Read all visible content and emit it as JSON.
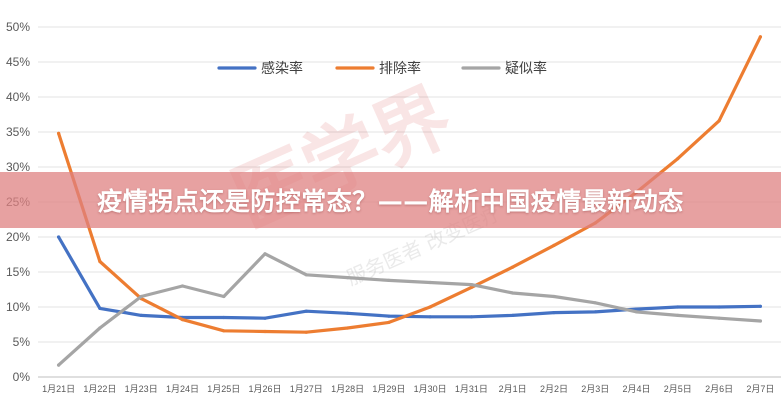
{
  "banner": {
    "title": "疫情拐点还是防控常态？——解析中国疫情最新动态"
  },
  "watermark": {
    "logo_text": "医学界",
    "sub_text": "服务医者 改变医疗"
  },
  "chart_data": {
    "type": "line",
    "categories": [
      "1月21日",
      "1月22日",
      "1月23日",
      "1月24日",
      "1月25日",
      "1月26日",
      "1月27日",
      "1月28日",
      "1月29日",
      "1月30日",
      "1月31日",
      "2月1日",
      "2月2日",
      "2月3日",
      "2月4日",
      "2月5日",
      "2月6日",
      "2月7日"
    ],
    "ylim": [
      0,
      50
    ],
    "yticks": [
      0,
      5,
      10,
      15,
      20,
      25,
      30,
      35,
      40,
      45,
      50
    ],
    "ytick_labels": [
      "0%",
      "5%",
      "10%",
      "15%",
      "20%",
      "25%",
      "30%",
      "35%",
      "40%",
      "45%",
      "50%"
    ],
    "grid": true,
    "legend_position": "top-center",
    "series": [
      {
        "name": "感染率",
        "color": "#4472c4",
        "values": [
          20.0,
          9.8,
          8.8,
          8.5,
          8.5,
          8.4,
          9.4,
          9.1,
          8.7,
          8.6,
          8.6,
          8.8,
          9.2,
          9.3,
          9.7,
          10.0,
          10.0,
          10.1
        ]
      },
      {
        "name": "排除率",
        "color": "#ed7d31",
        "values": [
          34.8,
          16.5,
          11.2,
          8.2,
          6.6,
          6.5,
          6.4,
          7.0,
          7.8,
          10.0,
          12.8,
          15.7,
          18.8,
          22.0,
          26.4,
          31.2,
          36.6,
          48.6
        ]
      },
      {
        "name": "疑似率",
        "color": "#a5a5a5",
        "values": [
          1.7,
          7.0,
          11.5,
          13.0,
          11.5,
          17.6,
          14.6,
          14.2,
          13.8,
          13.5,
          13.2,
          12.0,
          11.5,
          10.6,
          9.3,
          8.8,
          8.4,
          8.0
        ]
      }
    ]
  }
}
